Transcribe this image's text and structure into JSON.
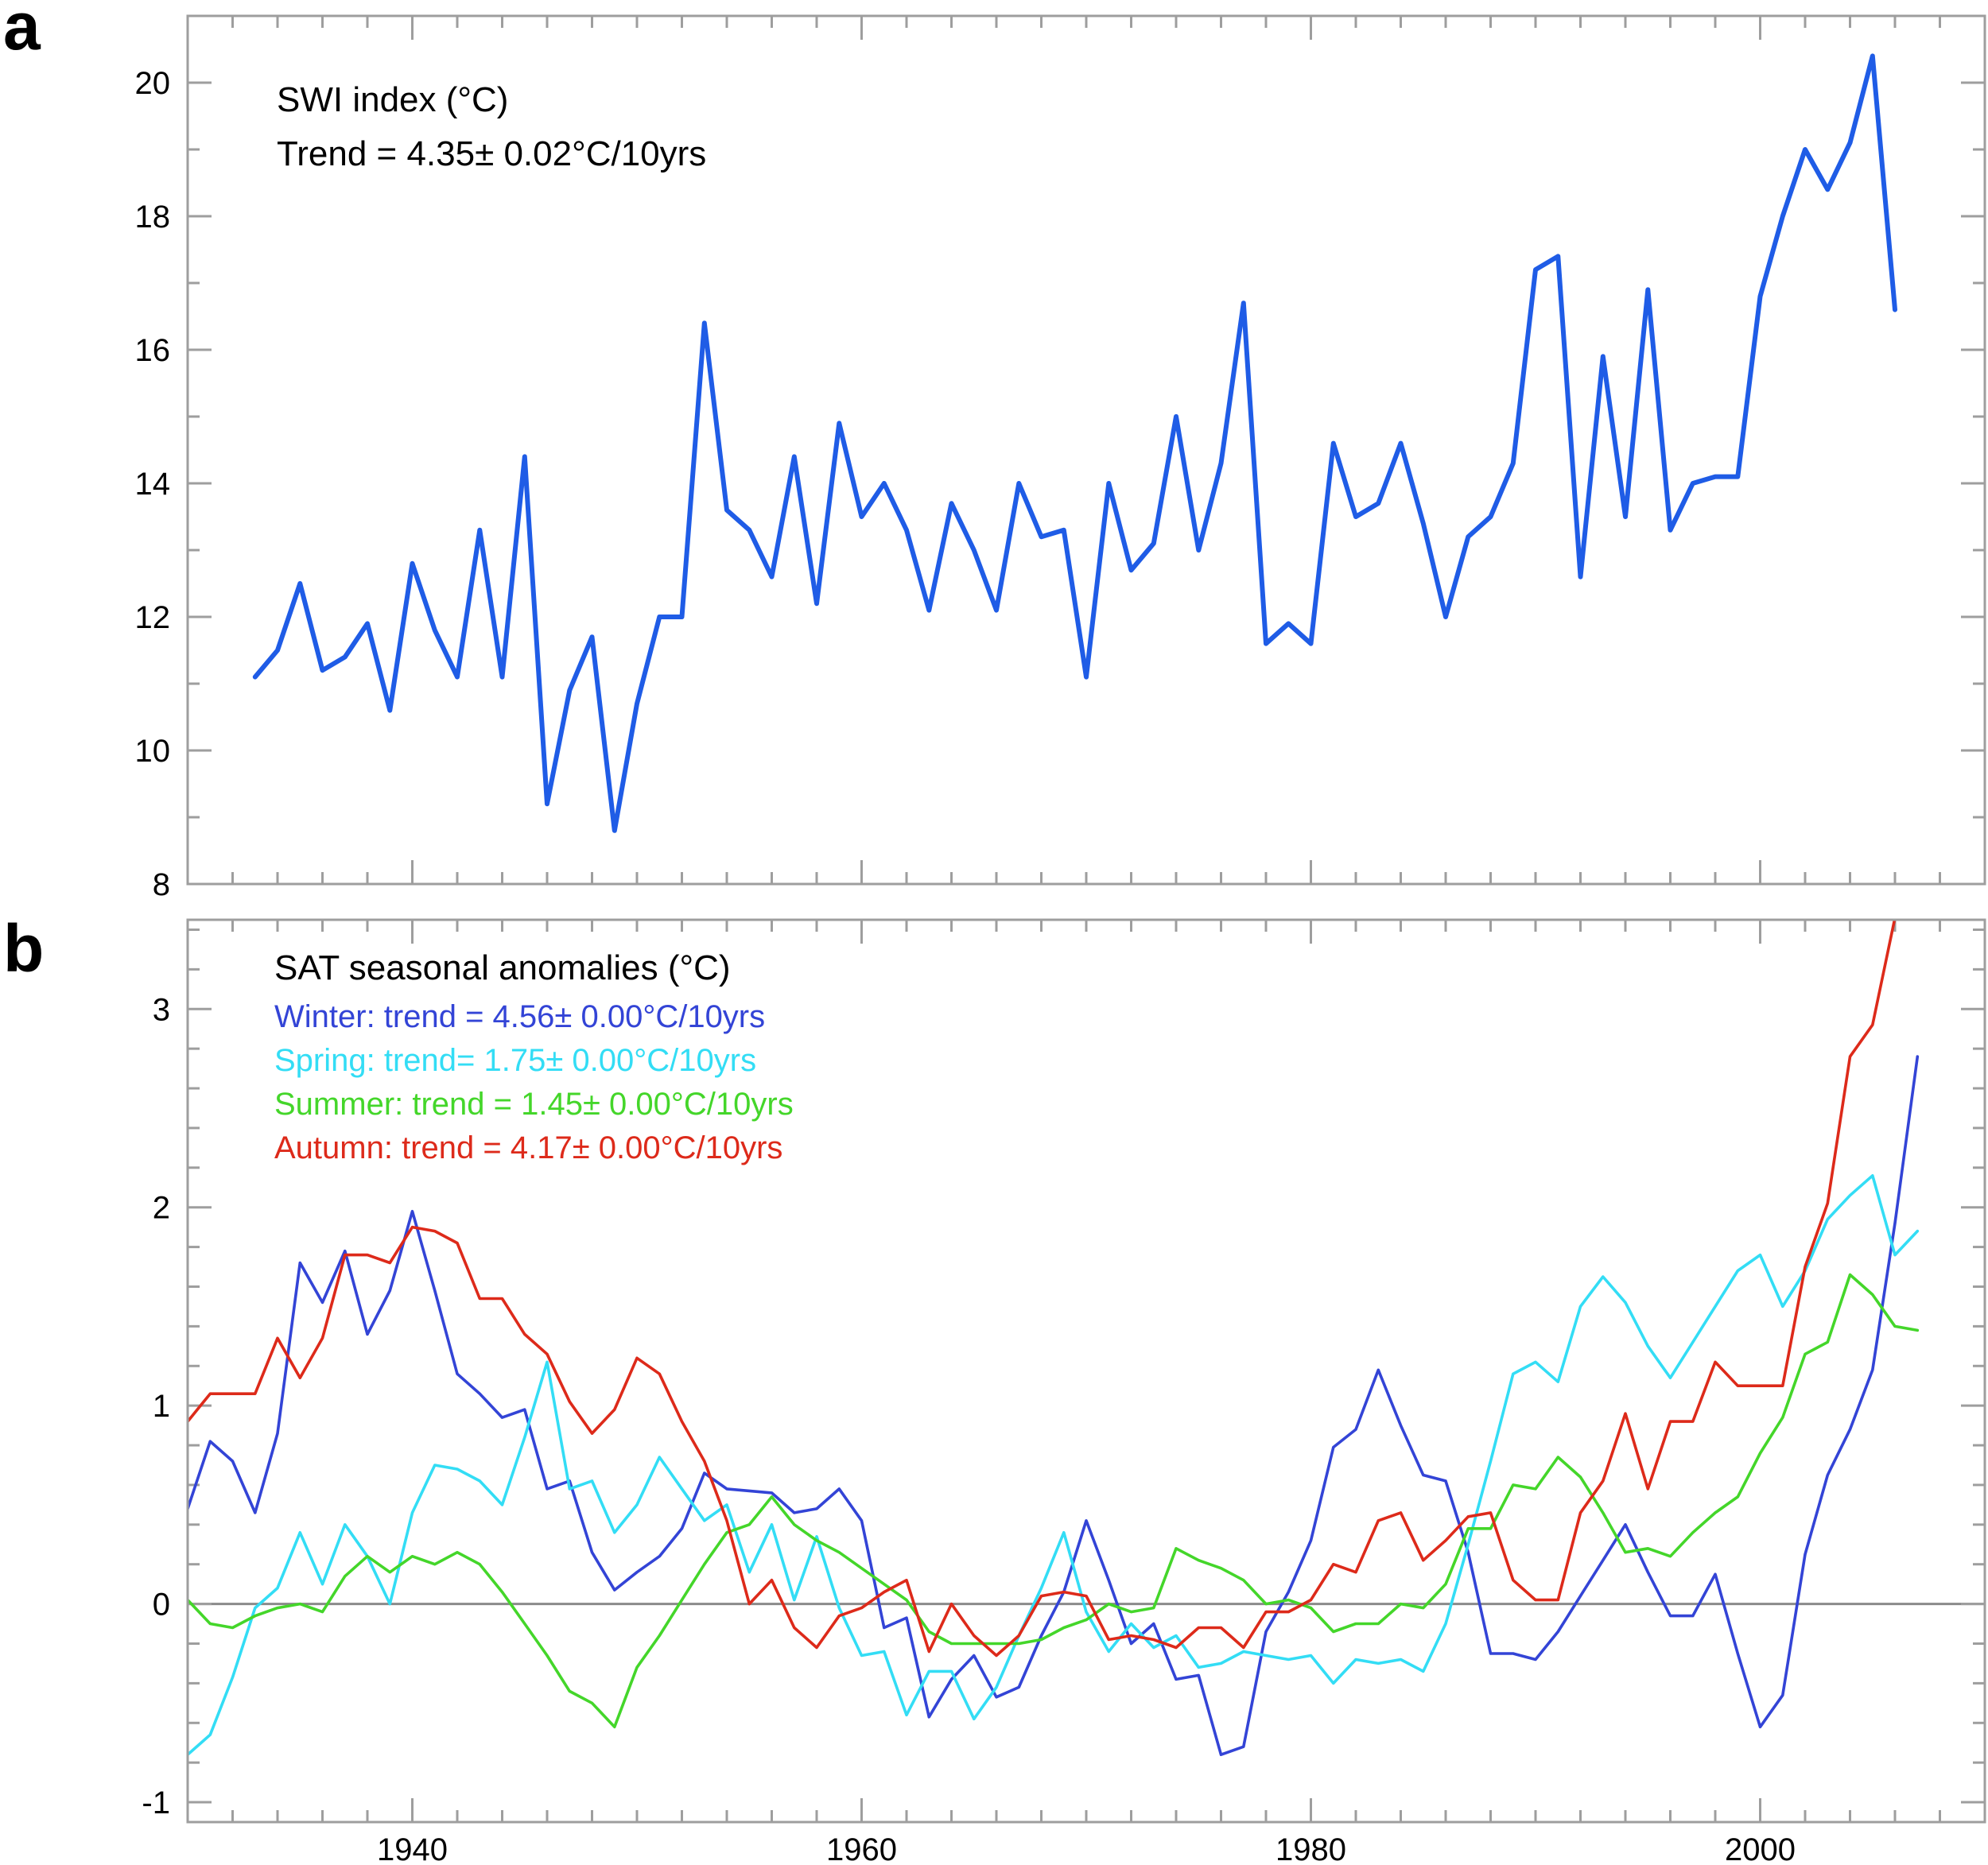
{
  "chart_data": [
    {
      "type": "line",
      "panel_label": "a",
      "title": "SWI index (°C)",
      "annotations": [
        "SWI index (°C)",
        "Trend = 4.35± 0.02°C/10yrs"
      ],
      "xlabel": "",
      "ylabel": "",
      "xlim": [
        1930,
        2010
      ],
      "ylim": [
        8,
        21
      ],
      "yticks": [
        8,
        10,
        12,
        14,
        16,
        18,
        20
      ],
      "xticks": [
        1940,
        1960,
        1980,
        2000
      ],
      "x_minor_step": 2,
      "y_minor_step": 1,
      "grid": false,
      "series": [
        {
          "name": "SWI index",
          "color": "#1f5ce6",
          "x_start": 1933,
          "values": [
            11.1,
            11.5,
            12.5,
            11.2,
            11.4,
            11.9,
            10.6,
            12.8,
            11.8,
            11.1,
            13.3,
            11.1,
            14.4,
            9.2,
            10.9,
            11.7,
            8.8,
            10.7,
            12.0,
            12.0,
            16.4,
            13.6,
            13.3,
            12.6,
            14.4,
            12.2,
            14.9,
            13.5,
            14.0,
            13.3,
            12.1,
            13.7,
            13.0,
            12.1,
            14.0,
            13.2,
            13.3,
            11.1,
            14.0,
            12.7,
            13.1,
            15.0,
            13.0,
            14.3,
            16.7,
            11.6,
            11.9,
            11.6,
            14.6,
            13.5,
            13.7,
            14.6,
            13.4,
            12.0,
            13.2,
            13.5,
            14.3,
            17.2,
            17.4,
            12.6,
            15.9,
            13.5,
            16.9,
            13.3,
            14.0,
            14.1,
            14.1,
            16.8,
            18.0,
            19.0,
            18.4,
            19.1,
            20.4,
            16.6
          ]
        }
      ]
    },
    {
      "type": "line",
      "panel_label": "b",
      "title": "SAT seasonal anomalies (°C)",
      "xlabel": "",
      "ylabel": "",
      "xlim": [
        1930,
        2010
      ],
      "ylim": [
        -1.1,
        3.45
      ],
      "yticks": [
        -1,
        0,
        1,
        2,
        3
      ],
      "xticks": [
        1940,
        1960,
        1980,
        2000
      ],
      "xtick_labels": [
        "1940",
        "1960",
        "1980",
        "2000"
      ],
      "x_minor_step": 2,
      "y_minor_step": 0.2,
      "zero_line": true,
      "grid": false,
      "series": [
        {
          "name": "Winter",
          "label": "Winter: trend = 4.56± 0.00°C/10yrs",
          "color": "#3344d6",
          "x_start": 1930,
          "values": [
            0.48,
            0.82,
            0.72,
            0.46,
            0.86,
            1.72,
            1.52,
            1.78,
            1.36,
            1.58,
            1.98,
            1.58,
            1.16,
            1.06,
            0.94,
            0.98,
            0.58,
            0.62,
            0.26,
            0.07,
            0.16,
            0.24,
            0.38,
            0.66,
            0.58,
            0.57,
            0.56,
            0.46,
            0.48,
            0.58,
            0.42,
            -0.12,
            -0.07,
            -0.57,
            -0.38,
            -0.26,
            -0.47,
            -0.42,
            -0.16,
            0.06,
            0.42,
            0.12,
            -0.2,
            -0.1,
            -0.38,
            -0.36,
            -0.76,
            -0.72,
            -0.14,
            0.06,
            0.32,
            0.79,
            0.88,
            1.18,
            0.9,
            0.65,
            0.62,
            0.26,
            -0.25,
            -0.25,
            -0.28,
            -0.14,
            0.04,
            0.22,
            0.4,
            0.16,
            -0.06,
            -0.06,
            0.15,
            -0.25,
            -0.62,
            -0.46,
            0.25,
            0.65,
            0.88,
            1.18,
            1.92,
            2.76
          ]
        },
        {
          "name": "Spring",
          "label": "Spring: trend=  1.75± 0.00°C/10yrs",
          "color": "#33ddf5",
          "x_start": 1930,
          "values": [
            -0.76,
            -0.66,
            -0.37,
            -0.02,
            0.08,
            0.36,
            0.1,
            0.4,
            0.24,
            0.0,
            0.46,
            0.7,
            0.68,
            0.62,
            0.5,
            0.84,
            1.22,
            0.58,
            0.62,
            0.36,
            0.5,
            0.74,
            0.58,
            0.42,
            0.5,
            0.16,
            0.4,
            0.02,
            0.34,
            -0.02,
            -0.26,
            -0.24,
            -0.56,
            -0.34,
            -0.34,
            -0.58,
            -0.42,
            -0.16,
            0.08,
            0.36,
            -0.04,
            -0.24,
            -0.1,
            -0.22,
            -0.16,
            -0.32,
            -0.3,
            -0.24,
            -0.26,
            -0.28,
            -0.26,
            -0.4,
            -0.28,
            -0.3,
            -0.28,
            -0.34,
            -0.1,
            0.3,
            0.72,
            1.16,
            1.22,
            1.12,
            1.5,
            1.65,
            1.52,
            1.3,
            1.14,
            1.32,
            1.5,
            1.68,
            1.76,
            1.5,
            1.68,
            1.94,
            2.06,
            2.16,
            1.76,
            1.88
          ]
        },
        {
          "name": "Summer",
          "label": "Summer: trend = 1.45± 0.00°C/10yrs",
          "color": "#44d62a",
          "x_start": 1930,
          "values": [
            0.02,
            -0.1,
            -0.12,
            -0.06,
            -0.02,
            0.0,
            -0.04,
            0.14,
            0.24,
            0.16,
            0.24,
            0.2,
            0.26,
            0.2,
            0.06,
            -0.1,
            -0.26,
            -0.44,
            -0.5,
            -0.62,
            -0.32,
            -0.16,
            0.02,
            0.2,
            0.36,
            0.4,
            0.54,
            0.4,
            0.32,
            0.26,
            0.18,
            0.1,
            0.02,
            -0.14,
            -0.2,
            -0.2,
            -0.2,
            -0.2,
            -0.18,
            -0.12,
            -0.08,
            0.0,
            -0.04,
            -0.02,
            0.28,
            0.22,
            0.18,
            0.12,
            0.0,
            0.02,
            -0.02,
            -0.14,
            -0.1,
            -0.1,
            0.0,
            -0.02,
            0.1,
            0.38,
            0.38,
            0.6,
            0.58,
            0.74,
            0.64,
            0.46,
            0.26,
            0.28,
            0.24,
            0.36,
            0.46,
            0.54,
            0.76,
            0.94,
            1.26,
            1.32,
            1.66,
            1.56,
            1.4,
            1.38
          ]
        },
        {
          "name": "Autumn",
          "label": "Autumn: trend = 4.17± 0.00°C/10yrs",
          "color": "#dd2a1a",
          "x_start": 1930,
          "values": [
            0.92,
            1.06,
            1.06,
            1.06,
            1.34,
            1.14,
            1.34,
            1.76,
            1.76,
            1.72,
            1.9,
            1.88,
            1.82,
            1.54,
            1.54,
            1.36,
            1.26,
            1.02,
            0.86,
            0.98,
            1.24,
            1.16,
            0.92,
            0.72,
            0.42,
            0.0,
            0.12,
            -0.12,
            -0.22,
            -0.06,
            -0.02,
            0.06,
            0.12,
            -0.24,
            0.0,
            -0.16,
            -0.26,
            -0.16,
            0.04,
            0.06,
            0.04,
            -0.18,
            -0.16,
            -0.18,
            -0.22,
            -0.12,
            -0.12,
            -0.22,
            -0.04,
            -0.04,
            0.02,
            0.2,
            0.16,
            0.42,
            0.46,
            0.22,
            0.32,
            0.44,
            0.46,
            0.12,
            0.02,
            0.02,
            0.46,
            0.62,
            0.96,
            0.58,
            0.92,
            0.92,
            1.22,
            1.1,
            1.1,
            1.1,
            1.7,
            2.02,
            2.76,
            2.92,
            3.46
          ]
        }
      ]
    }
  ]
}
